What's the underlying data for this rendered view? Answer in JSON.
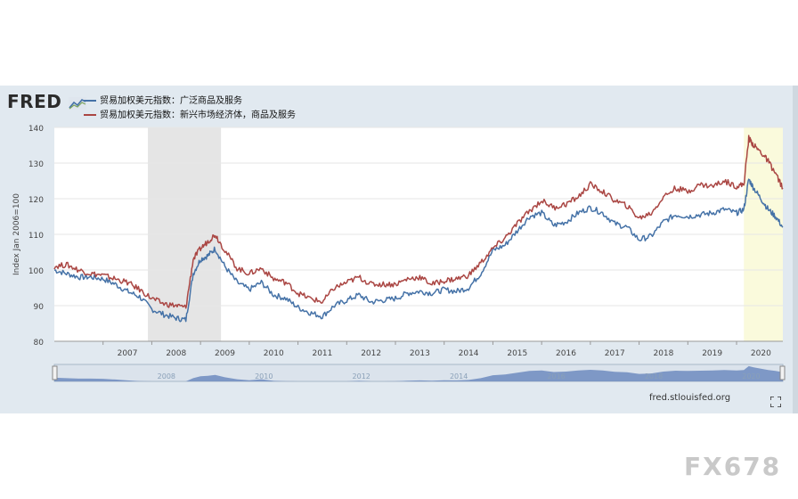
{
  "brand": {
    "logo_text": "FRED",
    "logo_icon": "fred-chart-icon"
  },
  "legend": [
    {
      "label": "贸易加权美元指数：广泛商品及服务",
      "color": "#4572a7"
    },
    {
      "label": "贸易加权美元指数：新兴市场经济体，商品及服务",
      "color": "#aa4643"
    }
  ],
  "source": "fred.stlouisfed.org",
  "watermark": "FX678",
  "colors": {
    "panel_bg": "#e1e9f0",
    "recession_shade": "#e5e5e5",
    "highlight_shade": "#fafadc",
    "navigator_fill": "#6d8bc0"
  },
  "chart_data": {
    "type": "line",
    "ylabel": "Index Jan 2006=100",
    "ylim": [
      80,
      140
    ],
    "yticks": [
      80,
      90,
      100,
      110,
      120,
      130,
      140
    ],
    "xlim": [
      2006.0,
      2020.95
    ],
    "xticks": [
      "2007",
      "2008",
      "2009",
      "2010",
      "2011",
      "2012",
      "2013",
      "2014",
      "2015",
      "2016",
      "2017",
      "2018",
      "2019",
      "2020"
    ],
    "grid": true,
    "recession_bands": [
      [
        2007.92,
        2009.42
      ]
    ],
    "highlight_bands": [
      [
        2020.15,
        2020.95
      ]
    ],
    "navigator_labels": [
      "2008",
      "2010",
      "2012",
      "2014",
      "2016",
      "2018",
      "2020"
    ],
    "series": [
      {
        "name": "贸易加权美元指数：广泛商品及服务",
        "color": "#4572a7",
        "x": [
          2006.0,
          2006.25,
          2006.5,
          2006.75,
          2007.0,
          2007.25,
          2007.5,
          2007.75,
          2008.0,
          2008.25,
          2008.5,
          2008.7,
          2008.85,
          2009.0,
          2009.15,
          2009.3,
          2009.5,
          2009.75,
          2010.0,
          2010.25,
          2010.5,
          2010.75,
          2011.0,
          2011.25,
          2011.5,
          2011.75,
          2012.0,
          2012.25,
          2012.5,
          2012.75,
          2013.0,
          2013.25,
          2013.5,
          2013.75,
          2014.0,
          2014.25,
          2014.5,
          2014.75,
          2015.0,
          2015.25,
          2015.5,
          2015.75,
          2016.0,
          2016.25,
          2016.5,
          2016.75,
          2017.0,
          2017.25,
          2017.5,
          2017.75,
          2018.0,
          2018.25,
          2018.5,
          2018.75,
          2019.0,
          2019.25,
          2019.5,
          2019.75,
          2020.0,
          2020.15,
          2020.25,
          2020.35,
          2020.5,
          2020.65,
          2020.8,
          2020.95
        ],
        "values": [
          100,
          99,
          98,
          98,
          97.5,
          96,
          94,
          92.5,
          89,
          87.5,
          86.5,
          86,
          99,
          103,
          104,
          106,
          101,
          96.5,
          94.5,
          96.5,
          93,
          92,
          89.5,
          88,
          87,
          90,
          91.5,
          93,
          91,
          91.5,
          92,
          93.5,
          94,
          93.5,
          94.5,
          94,
          95,
          99,
          105.5,
          107,
          111,
          115,
          116,
          112.5,
          113.5,
          116,
          117.5,
          116,
          113,
          112,
          108.5,
          109.5,
          113.5,
          115.5,
          115,
          115.5,
          116,
          117,
          116,
          117,
          125.5,
          123,
          120,
          117,
          115,
          112
        ]
      },
      {
        "name": "贸易加权美元指数：新兴市场经济体，商品及服务",
        "color": "#aa4643",
        "x": [
          2006.0,
          2006.25,
          2006.5,
          2006.75,
          2007.0,
          2007.25,
          2007.5,
          2007.75,
          2008.0,
          2008.25,
          2008.5,
          2008.7,
          2008.85,
          2009.0,
          2009.15,
          2009.3,
          2009.5,
          2009.75,
          2010.0,
          2010.25,
          2010.5,
          2010.75,
          2011.0,
          2011.25,
          2011.5,
          2011.75,
          2012.0,
          2012.25,
          2012.5,
          2012.75,
          2013.0,
          2013.25,
          2013.5,
          2013.75,
          2014.0,
          2014.25,
          2014.5,
          2014.75,
          2015.0,
          2015.25,
          2015.5,
          2015.75,
          2016.0,
          2016.25,
          2016.5,
          2016.75,
          2017.0,
          2017.25,
          2017.5,
          2017.75,
          2018.0,
          2018.25,
          2018.5,
          2018.75,
          2019.0,
          2019.25,
          2019.5,
          2019.75,
          2020.0,
          2020.15,
          2020.25,
          2020.35,
          2020.5,
          2020.65,
          2020.8,
          2020.95
        ],
        "values": [
          101,
          101.5,
          100,
          99,
          98.5,
          97.5,
          96.5,
          94.5,
          92,
          90.5,
          90,
          89.5,
          103,
          106,
          108,
          110,
          105.5,
          100.5,
          99,
          100.5,
          97.5,
          96.5,
          93.5,
          92,
          91,
          95,
          96.5,
          98,
          96,
          96,
          96,
          97.5,
          98,
          96,
          97,
          97.5,
          98.5,
          102,
          106,
          109,
          113,
          116.5,
          119.5,
          117.5,
          118.5,
          120.5,
          124,
          122,
          119.5,
          118,
          114.5,
          116,
          120.5,
          123,
          122,
          124,
          123.5,
          125,
          123.5,
          124,
          137,
          135,
          133,
          130.5,
          127,
          123
        ]
      }
    ]
  }
}
